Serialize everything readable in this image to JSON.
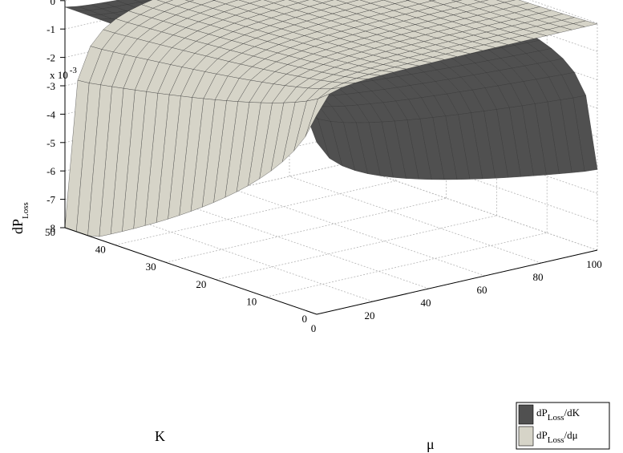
{
  "chart_data": {
    "type": "surface3d",
    "axes": {
      "x": {
        "label": "μ",
        "ticks": [
          0,
          20,
          40,
          60,
          80,
          100
        ],
        "range": [
          0,
          100
        ]
      },
      "y": {
        "label": "K",
        "ticks": [
          0,
          10,
          20,
          30,
          40,
          50
        ],
        "range": [
          0,
          50
        ]
      },
      "z": {
        "label_main": "dP",
        "label_sub": "Loss",
        "multiplier_base": "x 10",
        "multiplier_exp": "-3",
        "ticks": [
          0,
          -1,
          -2,
          -3,
          -4,
          -5,
          -6,
          -7,
          -8
        ],
        "range": [
          -8,
          0
        ]
      }
    },
    "grid": true,
    "legend_position": "bottom-right",
    "series": [
      {
        "name": "dP_Loss/dK",
        "legend_main": "dP",
        "legend_sub": "Loss",
        "legend_tail": "/dK",
        "color": "#505050",
        "samples": [
          {
            "mu": 0,
            "K": 0,
            "z": -8.0
          },
          {
            "mu": 0,
            "K": 50,
            "z": 0.0
          },
          {
            "mu": 100,
            "K": 0,
            "z": -2.0
          },
          {
            "mu": 100,
            "K": 50,
            "z": -0.6
          }
        ]
      },
      {
        "name": "dP_Loss/dμ",
        "legend_main": "dP",
        "legend_sub": "Loss",
        "legend_tail": "/dμ",
        "color": "#d6d4c8",
        "samples": [
          {
            "mu": 0,
            "K": 0,
            "z": -8.0
          },
          {
            "mu": 0,
            "K": 50,
            "z": -3.1
          },
          {
            "mu": 100,
            "K": 0,
            "z": -1.0
          },
          {
            "mu": 100,
            "K": 50,
            "z": 0.0
          }
        ]
      }
    ]
  }
}
